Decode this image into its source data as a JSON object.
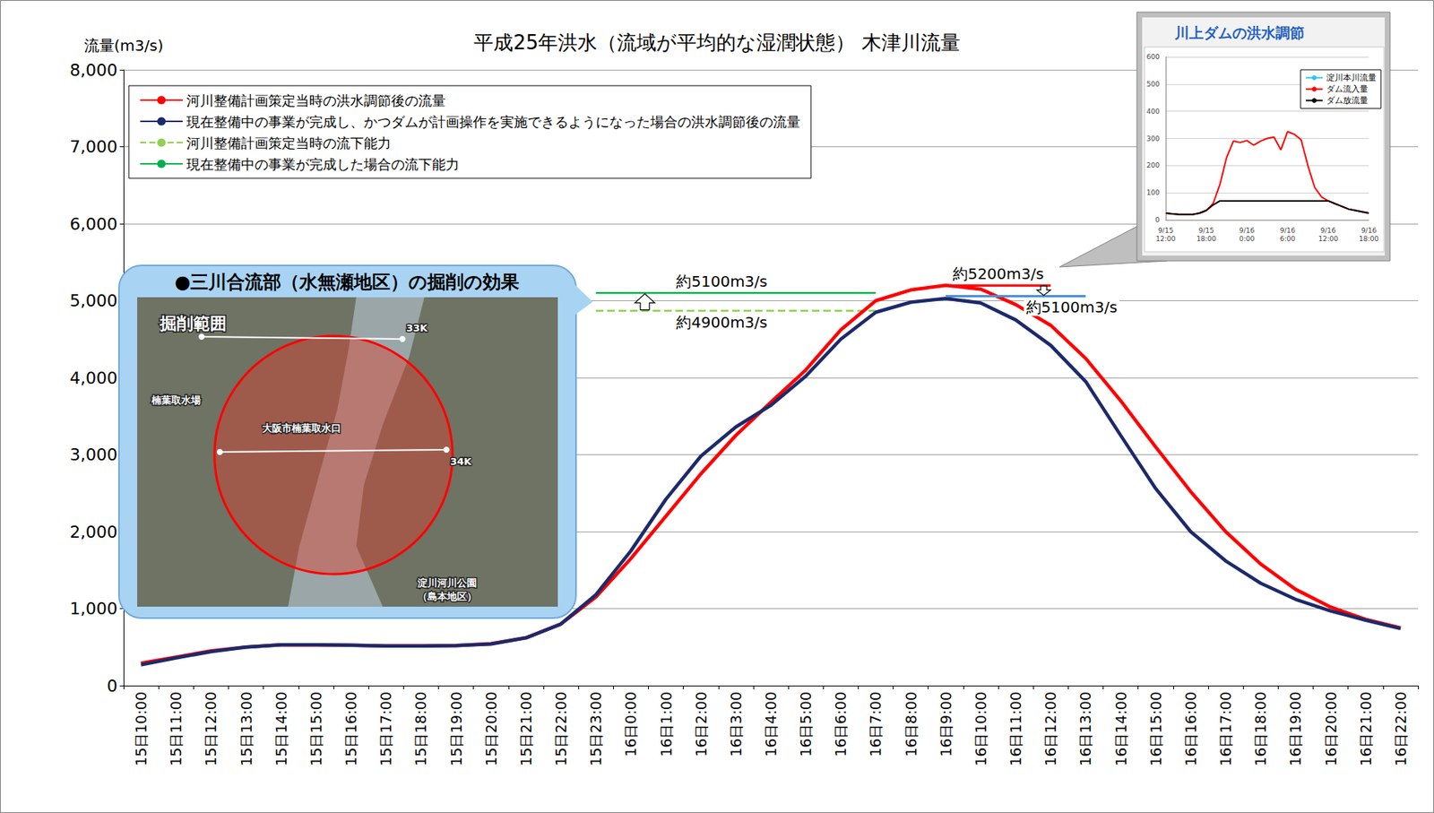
{
  "chart_data": [
    {
      "type": "line",
      "title": "平成25年洪水（流域が平均的な湿潤状態） 木津川流量",
      "y_label": "流量(m3/s)",
      "categories": [
        "15日10:00",
        "15日11:00",
        "15日12:00",
        "15日13:00",
        "15日14:00",
        "15日15:00",
        "15日16:00",
        "15日17:00",
        "15日18:00",
        "15日19:00",
        "15日20:00",
        "15日21:00",
        "15日22:00",
        "15日23:00",
        "16日0:00",
        "16日1:00",
        "16日2:00",
        "16日3:00",
        "16日4:00",
        "16日5:00",
        "16日6:00",
        "16日7:00",
        "16日8:00",
        "16日9:00",
        "16日10:00",
        "16日11:00",
        "16日12:00",
        "16日13:00",
        "16日14:00",
        "16日15:00",
        "16日16:00",
        "16日17:00",
        "16日18:00",
        "16日19:00",
        "16日20:00",
        "16日21:00",
        "16日22:00"
      ],
      "series": [
        {
          "name": "河川整備計画策定当時の洪水調節後の流量",
          "color": "#ff0000",
          "line_style": "solid",
          "values": [
            290,
            370,
            450,
            500,
            530,
            530,
            525,
            515,
            515,
            520,
            545,
            620,
            800,
            1150,
            1650,
            2200,
            2750,
            3250,
            3680,
            4100,
            4620,
            5000,
            5140,
            5200,
            5150,
            4950,
            4680,
            4250,
            3700,
            3100,
            2520,
            2000,
            1580,
            1250,
            1020,
            860,
            750
          ]
        },
        {
          "name": "現在整備中の事業が完成し、かつダムが計画操作を実施できるようになった場合の洪水調節後の流量",
          "color": "#1c2a6b",
          "line_style": "solid",
          "values": [
            270,
            360,
            440,
            500,
            530,
            530,
            525,
            515,
            515,
            520,
            540,
            620,
            800,
            1180,
            1750,
            2420,
            2980,
            3360,
            3640,
            4020,
            4500,
            4850,
            4980,
            5030,
            4970,
            4750,
            4420,
            3950,
            3250,
            2560,
            2000,
            1620,
            1330,
            1120,
            970,
            850,
            740
          ]
        },
        {
          "name": "河川整備計画策定当時の流下能力",
          "color": "#92d050",
          "line_style": "dashed",
          "label": "約4900m3/s",
          "values": [
            null,
            null,
            null,
            null,
            null,
            null,
            null,
            null,
            null,
            null,
            null,
            null,
            null,
            4870,
            4870,
            4870,
            4870,
            4870,
            4870,
            4870,
            4870,
            4870,
            null,
            null,
            null,
            null,
            null,
            null,
            null,
            null,
            null,
            null,
            null,
            null,
            null,
            null,
            null
          ]
        },
        {
          "name": "現在整備中の事業が完成した場合の流下能力",
          "color": "#00b050",
          "line_style": "solid",
          "label": "約5100m3/s",
          "values": [
            null,
            null,
            null,
            null,
            null,
            null,
            null,
            null,
            null,
            null,
            null,
            null,
            null,
            5100,
            5100,
            5100,
            5100,
            5100,
            5100,
            5100,
            5100,
            5100,
            null,
            null,
            null,
            null,
            null,
            null,
            null,
            null,
            null,
            null,
            null,
            null,
            null,
            null,
            null
          ]
        }
      ],
      "reference_lines": [
        {
          "value": 5200,
          "from": "16日9:00",
          "to": "16日12:00",
          "color": "#ff0000",
          "label": "約5200m3/s"
        },
        {
          "value": 5060,
          "from": "16日9:00",
          "to": "16日13:00",
          "color": "#4a90d9",
          "label": "約5100m3/s"
        }
      ],
      "ylim": [
        0,
        8000
      ],
      "yticks": [
        0,
        {
          "value": 1000,
          "label": "1,000"
        },
        {
          "value": 2000,
          "label": "2,000"
        },
        {
          "value": 3000,
          "label": "3,000"
        },
        {
          "value": 4000,
          "label": "4,000"
        },
        {
          "value": 5000,
          "label": "5,000"
        },
        {
          "value": 6000,
          "label": "6,000"
        },
        {
          "value": 7000,
          "label": "7,000"
        },
        {
          "value": 8000,
          "label": "8,000"
        }
      ],
      "grid": true,
      "legend": "upper left",
      "marker": "none"
    },
    {
      "type": "line",
      "title": "川上ダムの洪水調節",
      "categories": [
        "9/15 12:00",
        null,
        null,
        null,
        null,
        null,
        "9/15 18:00",
        null,
        null,
        null,
        null,
        null,
        "9/16 0:00",
        null,
        null,
        null,
        null,
        null,
        "9/16 6:00",
        null,
        null,
        null,
        null,
        null,
        "9/16 12:00",
        null,
        null,
        null,
        null,
        null,
        "9/16 18:00"
      ],
      "series": [
        {
          "name": "淀川本川流量",
          "color": "#33c3f0",
          "values": [
            null,
            null,
            null,
            null,
            null,
            null,
            null,
            null,
            null,
            null,
            null,
            null,
            null,
            null,
            null,
            null,
            null,
            null,
            null,
            null,
            null,
            null,
            null,
            null,
            null,
            null,
            null,
            null,
            null,
            null,
            null
          ]
        },
        {
          "name": "ダム流入量",
          "color": "#ff0000",
          "values": [
            25,
            22,
            20,
            20,
            20,
            25,
            35,
            60,
            130,
            230,
            290,
            285,
            292,
            275,
            290,
            300,
            305,
            258,
            325,
            315,
            295,
            200,
            120,
            85,
            70,
            60,
            50,
            40,
            35,
            30,
            25
          ]
        },
        {
          "name": "ダム放流量",
          "color": "#000000",
          "values": [
            25,
            22,
            20,
            20,
            20,
            25,
            35,
            55,
            70,
            70,
            70,
            70,
            70,
            70,
            70,
            70,
            70,
            70,
            70,
            70,
            70,
            70,
            70,
            70,
            70,
            60,
            50,
            40,
            35,
            30,
            25
          ]
        }
      ],
      "ylim": [
        0,
        600
      ],
      "yticks": [
        0,
        100,
        200,
        300,
        400,
        500,
        600
      ],
      "grid": true,
      "legend": "upper right",
      "marker": "none"
    }
  ],
  "callout": {
    "title": "●三川合流部（水無瀬地区）の掘削の効果",
    "photo_labels": [
      "掘削範囲",
      "33K",
      "34K",
      "楠葉取水場",
      "大阪市楠葉取水口",
      "淀川河川公園",
      "（島本地区）"
    ]
  }
}
